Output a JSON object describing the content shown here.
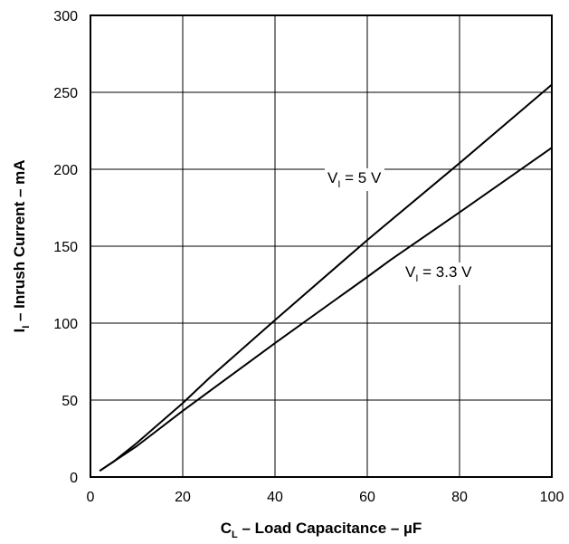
{
  "chart_data": {
    "type": "line",
    "xlabel": {
      "main": "C",
      "sub": "L",
      "rest": " – Load Capacitance – µF"
    },
    "ylabel": {
      "main": "I",
      "sub": "I",
      "rest": " – Inrush Current – mA"
    },
    "xlim": [
      0,
      100
    ],
    "ylim": [
      0,
      300
    ],
    "xticks": [
      0,
      20,
      40,
      60,
      80,
      100
    ],
    "yticks": [
      0,
      50,
      100,
      150,
      200,
      250,
      300
    ],
    "grid": true,
    "series": [
      {
        "name": "V_I = 5 V",
        "x": [
          2,
          5,
          10,
          20,
          26,
          40,
          60,
          80,
          100
        ],
        "y": [
          4,
          10,
          22,
          48,
          65,
          102,
          154,
          204,
          255
        ]
      },
      {
        "name": "V_I = 3.3 V",
        "x": [
          2,
          5,
          10,
          20,
          40,
          53,
          60,
          65,
          80,
          100
        ],
        "y": [
          4,
          10,
          20,
          43,
          87,
          115,
          130,
          141,
          172,
          214
        ]
      }
    ],
    "annotations": [
      {
        "main": "V",
        "sub": "I",
        "rest": " = 5 V"
      },
      {
        "main": "V",
        "sub": "I",
        "rest": " = 3.3 V"
      }
    ]
  }
}
